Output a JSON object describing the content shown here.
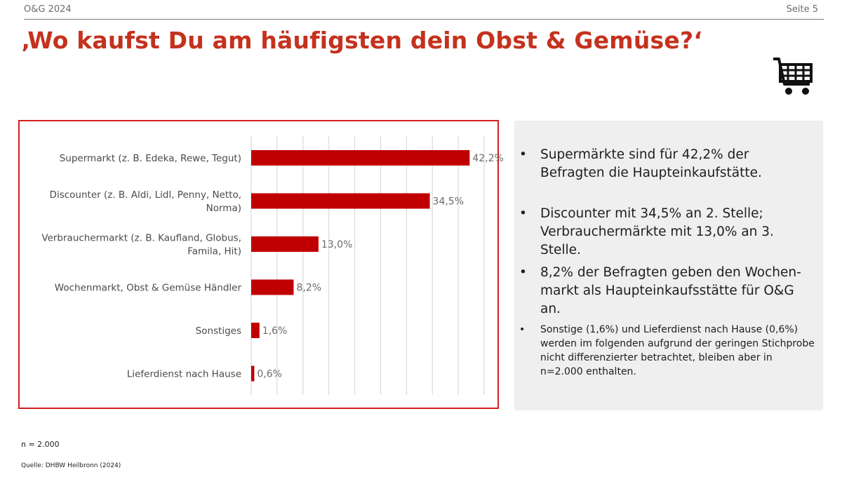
{
  "header": {
    "left": "O&G 2024",
    "right": "Seite 5"
  },
  "title": "‚Wo kaufst Du am häufigsten dein Obst & Gemüse?‘",
  "icons": {
    "cart": "shopping-cart-icon"
  },
  "colors": {
    "accent": "#c4321e",
    "bar": "#c00000",
    "border": "#d21f1f",
    "panel": "#efefef"
  },
  "chart_data": {
    "type": "bar",
    "orientation": "horizontal",
    "categories": [
      [
        "Supermarkt (z. B. Edeka, Rewe, Tegut)"
      ],
      [
        "Discounter (z. B. Aldi, Lidl, Penny, Netto,",
        "Norma)"
      ],
      [
        "Verbrauchermarkt (z. B. Kaufland, Globus,",
        "Famila, Hit)"
      ],
      [
        "Wochenmarkt, Obst & Gemüse Händler"
      ],
      [
        "Sonstiges"
      ],
      [
        "Lieferdienst nach Hause"
      ]
    ],
    "values": [
      42.2,
      34.5,
      13.0,
      8.2,
      1.6,
      0.6
    ],
    "data_labels": [
      "42,2%",
      "34,5%",
      "13,0%",
      "8,2%",
      "1,6%",
      "0,6%"
    ],
    "xlim": [
      0,
      45
    ],
    "grid": true,
    "legend": "none"
  },
  "bullets": [
    "Supermärkte sind für 42,2% der Befragten die Haupteinkaufstätte.",
    "Discounter mit 34,5% an 2. Stelle; Verbrauchermärkte mit 13,0% an 3. Stelle.",
    "8,2% der Befragten geben den Wochen-markt als Haupteinkaufsstätte für O&G an.",
    "Sonstige (1,6%) und Lieferdienst nach Hause (0,6%) werden im folgenden aufgrund der geringen Stichprobe nicht differenzierter betrachtet, bleiben aber in n=2.000 enthalten."
  ],
  "bullet_char": "•",
  "footer": {
    "n": "n = 2.000",
    "source": "Quelle: DHBW Heilbronn (2024)"
  }
}
